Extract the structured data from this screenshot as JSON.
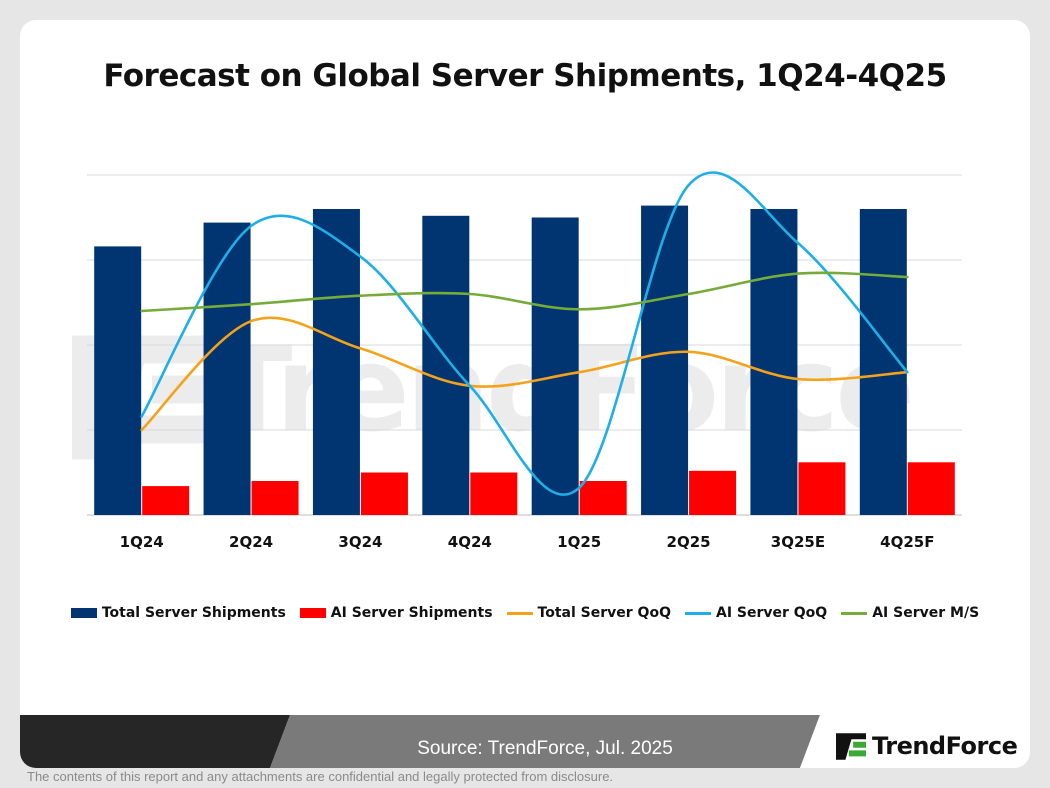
{
  "title": "Forecast on Global Server Shipments, 1Q24-4Q25",
  "colors": {
    "total_bar": "#003571",
    "ai_bar": "#ff0000",
    "total_qoq": "#f5a21b",
    "ai_qoq": "#1eaee8",
    "ai_ms": "#76ab3a"
  },
  "chart_data": {
    "type": "bar",
    "title": "Forecast on Global Server Shipments, 1Q24-4Q25",
    "categories": [
      "1Q24",
      "2Q24",
      "3Q24",
      "4Q24",
      "1Q25",
      "2Q25",
      "3Q25E",
      "4Q25F"
    ],
    "grid": true,
    "axes_labels_shown": false,
    "bar_series": [
      {
        "name": "Total Server Shipments",
        "values": [
          0.79,
          0.86,
          0.9,
          0.88,
          0.875,
          0.91,
          0.9,
          0.9
        ]
      },
      {
        "name": "AI Server Shipments",
        "values": [
          0.085,
          0.1,
          0.125,
          0.125,
          0.1,
          0.13,
          0.155,
          0.155
        ]
      }
    ],
    "line_series": [
      {
        "name": "Total Server QoQ",
        "values": [
          0.25,
          0.57,
          0.49,
          0.38,
          0.42,
          0.48,
          0.4,
          0.42
        ]
      },
      {
        "name": "AI Server QoQ",
        "values": [
          0.29,
          0.85,
          0.76,
          0.38,
          0.08,
          0.97,
          0.8,
          0.42
        ]
      },
      {
        "name": "AI Server M/S",
        "values": [
          0.6,
          0.62,
          0.645,
          0.65,
          0.605,
          0.65,
          0.71,
          0.7
        ]
      }
    ],
    "legend_position": "bottom"
  },
  "footer": {
    "source": "Source: TrendForce, Jul. 2025",
    "brand": "TrendForce",
    "disclaimer": "The contents of this report and any attachments are confidential and legally protected from disclosure."
  }
}
